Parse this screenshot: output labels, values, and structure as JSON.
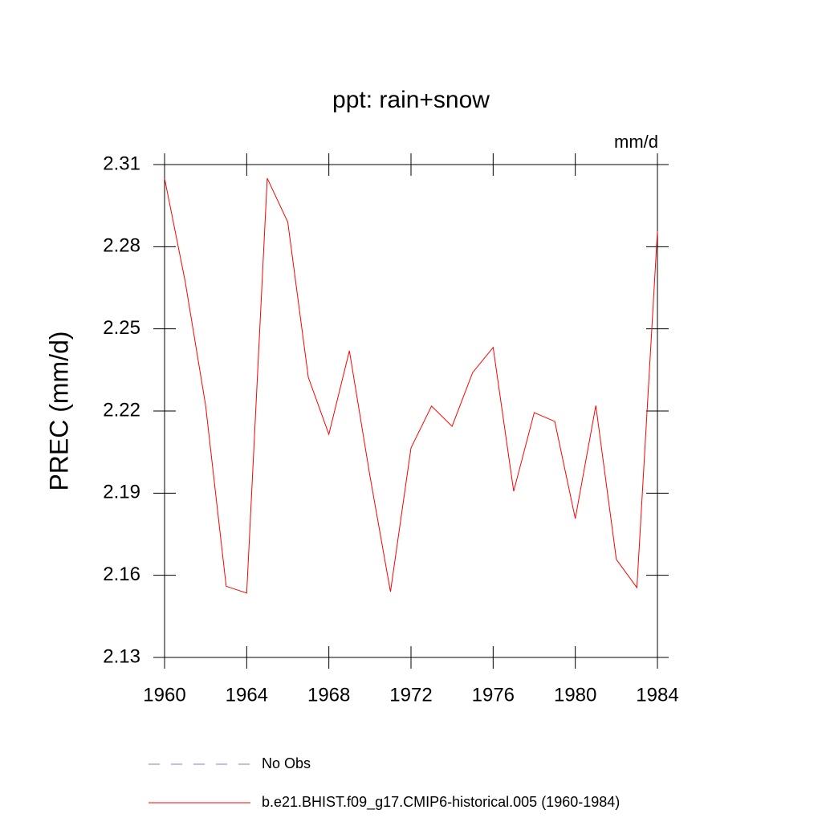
{
  "chart_data": {
    "type": "line",
    "title": "ppt: rain+snow",
    "units": "mm/d",
    "ylabel": "PREC  (mm/d)",
    "x": [
      1960,
      1961,
      1962,
      1963,
      1964,
      1965,
      1966,
      1967,
      1968,
      1969,
      1970,
      1971,
      1972,
      1973,
      1974,
      1975,
      1976,
      1977,
      1978,
      1979,
      1980,
      1981,
      1982,
      1983,
      1984
    ],
    "series": [
      {
        "name": "b.e21.BHIST.f09_g17.CMIP6-historical.005 (1960-1984)",
        "color": "#ff0000",
        "values": [
          2.305,
          2.2675,
          2.222,
          2.156,
          2.1535,
          2.305,
          2.289,
          2.2323,
          2.2115,
          2.242,
          2.1963,
          2.154,
          2.2065,
          2.2218,
          2.2144,
          2.234,
          2.2432,
          2.1907,
          2.2194,
          2.2162,
          2.1807,
          2.222,
          2.1658,
          2.1555,
          2.2857
        ]
      }
    ],
    "legend_extra": [
      {
        "name": "No Obs",
        "color": "#8080c0",
        "style": "dashed"
      }
    ],
    "xlim": [
      1960,
      1984
    ],
    "xticks": [
      1960,
      1964,
      1968,
      1972,
      1976,
      1980,
      1984
    ],
    "ylim": [
      2.13,
      2.31
    ],
    "yticks": [
      2.13,
      2.16,
      2.19,
      2.22,
      2.25,
      2.28,
      2.31
    ]
  }
}
